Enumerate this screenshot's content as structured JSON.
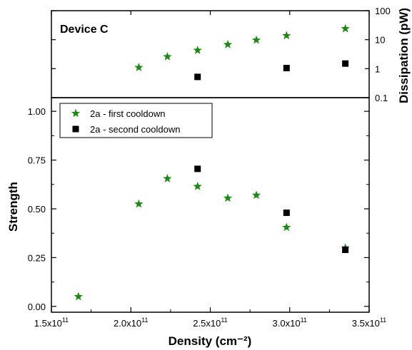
{
  "colors": {
    "series_1": "#1b8a12",
    "series_2": "#000000",
    "axis": "#000000"
  },
  "chart_data": [
    {
      "type": "scatter",
      "panel_label": "Device C",
      "xlim": [
        150000000000.0,
        350000000000.0
      ],
      "ylim": [
        0.1,
        100
      ],
      "yscale": "log",
      "ylabel": "Dissipation (pW)",
      "ylabel_position": "right",
      "yticks": [
        {
          "value": 0.1,
          "label": "0.1"
        },
        {
          "value": 1,
          "label": "1"
        },
        {
          "value": 10,
          "label": "10"
        },
        {
          "value": 100,
          "label": "100"
        }
      ],
      "series": [
        {
          "marker": "star",
          "x": [
            205000000000.0,
            223000000000.0,
            242000000000.0,
            261000000000.0,
            279000000000.0,
            298000000000.0,
            335000000000.0
          ],
          "y": [
            1.1,
            2.6,
            4.3,
            6.8,
            9.7,
            13.8,
            24.0
          ]
        },
        {
          "marker": "square",
          "x": [
            242000000000.0,
            298000000000.0,
            335000000000.0
          ],
          "y": [
            0.52,
            1.05,
            1.5
          ]
        }
      ]
    },
    {
      "type": "scatter",
      "xlim": [
        150000000000.0,
        350000000000.0
      ],
      "ylim": [
        -0.03,
        1.07
      ],
      "ylabel": "Strength",
      "xlabel": "Density (cm⁻²)",
      "xticks": [
        {
          "value": 150000000000.0,
          "mant": "1.5x10",
          "exp": "11"
        },
        {
          "value": 200000000000.0,
          "mant": "2.0x10",
          "exp": "11"
        },
        {
          "value": 250000000000.0,
          "mant": "2.5x10",
          "exp": "11"
        },
        {
          "value": 300000000000.0,
          "mant": "3.0x10",
          "exp": "11"
        },
        {
          "value": 350000000000.0,
          "mant": "3.5x10",
          "exp": "11"
        }
      ],
      "yticks": [
        {
          "value": 0.0,
          "label": "0.00"
        },
        {
          "value": 0.25,
          "label": "0.25"
        },
        {
          "value": 0.5,
          "label": "0.50"
        },
        {
          "value": 0.75,
          "label": "0.75"
        },
        {
          "value": 1.0,
          "label": "1.00"
        }
      ],
      "legend_position": "top-left",
      "series": [
        {
          "name": "2a - first cooldown",
          "marker": "star",
          "x": [
            167000000000.0,
            205000000000.0,
            223000000000.0,
            242000000000.0,
            261000000000.0,
            279000000000.0,
            298000000000.0,
            335000000000.0
          ],
          "y": [
            0.05,
            0.525,
            0.655,
            0.615,
            0.555,
            0.57,
            0.405,
            0.3
          ]
        },
        {
          "name": "2a - second cooldown",
          "marker": "square",
          "x": [
            242000000000.0,
            298000000000.0,
            335000000000.0
          ],
          "y": [
            0.705,
            0.48,
            0.29
          ]
        }
      ]
    }
  ]
}
